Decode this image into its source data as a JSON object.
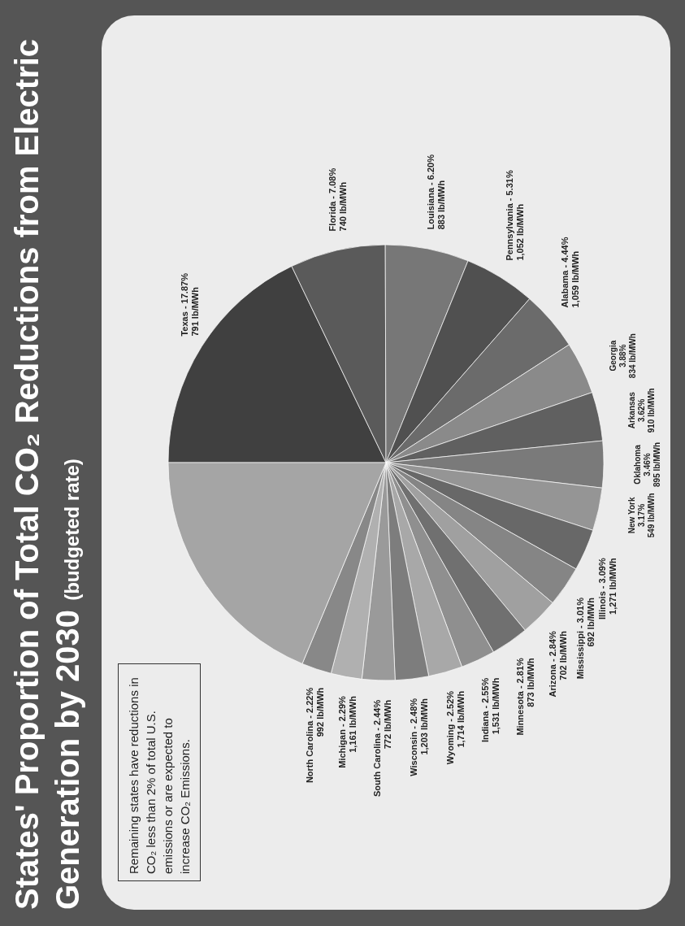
{
  "chart_data": {
    "type": "pie",
    "title": "States' Proportion of Total CO₂ Reductions from Electric Generation by 2030",
    "subtitle": "(budgeted rate)",
    "categories": [
      "Texas",
      "Florida",
      "Louisiana",
      "Pennsylvania",
      "Alabama",
      "Georgia",
      "Arkansas",
      "Oklahoma",
      "New York",
      "Illinois",
      "Mississippi",
      "Arizona",
      "Minnesota",
      "Indiana",
      "Wyoming",
      "Wisconsin",
      "South Carolina",
      "Michigan",
      "North Carolina",
      null
    ],
    "values": [
      17.87,
      7.08,
      6.2,
      5.31,
      4.44,
      3.88,
      3.62,
      3.46,
      3.17,
      3.09,
      3.01,
      2.84,
      2.81,
      2.55,
      2.52,
      2.48,
      2.44,
      2.29,
      2.22,
      18.72
    ],
    "value_labels": [
      "17.87%",
      "7.08%",
      "6.20%",
      "5.31%",
      "4.44%",
      "3.88%",
      "3.62%",
      "3.46%",
      "3.17%",
      "3.09%",
      "3.01%",
      "2.84%",
      "2.81%",
      "2.55%",
      "2.52%",
      "2.48%",
      "2.44%",
      "2.29%",
      "2.22%",
      null
    ],
    "colors": [
      "#404040",
      "#5a5a5a",
      "#777777",
      "#505050",
      "#6b6b6b",
      "#8a8a8a",
      "#606060",
      "#7a7a7a",
      "#959595",
      "#686868",
      "#858585",
      "#a0a0a0",
      "#707070",
      "#8f8f8f",
      "#a8a8a8",
      "#7d7d7d",
      "#9a9a9a",
      "#b0b0b0",
      "#888888",
      "#a5a5a5"
    ],
    "annotations": [
      "Remaining states have reductions in CO₂ less than 2% of total U.S. emissions or are expected to increase CO₂ Emissions.",
      {
        "text": "791 lb/MWh",
        "x": "Texas"
      },
      {
        "text": "740 lb/MWh",
        "x": "Florida"
      },
      {
        "text": "883 lb/MWh",
        "x": "Louisiana"
      },
      {
        "text": "1,052 lb/MWh",
        "x": "Pennsylvania"
      },
      {
        "text": "1,059 lb/MWh",
        "x": "Alabama"
      },
      {
        "text": "834 lb/MWh",
        "x": "Georgia"
      },
      {
        "text": "910 lb/MWh",
        "x": "Arkansas"
      },
      {
        "text": "895 lb/MWh",
        "x": "Oklahoma"
      },
      {
        "text": "549 lb/MWh",
        "x": "New York"
      },
      {
        "text": "1,271 lb/MWh",
        "x": "Illinois"
      },
      {
        "text": "692 lb/MWh",
        "x": "Mississippi"
      },
      {
        "text": "702 lb/MWh",
        "x": "Arizona"
      },
      {
        "text": "873 lb/MWh",
        "x": "Minnesota"
      },
      {
        "text": "1,531 lb/MWh",
        "x": "Indiana"
      },
      {
        "text": "1,714 lb/MWh",
        "x": "Wyoming"
      },
      {
        "text": "1,203 lb/MWh",
        "x": "Wisconsin"
      },
      {
        "text": "772 lb/MWh",
        "x": "South Carolina"
      },
      {
        "text": "1,161 lb/MWh",
        "x": "Michigan"
      },
      {
        "text": "992 lb/MWh",
        "x": "North Carolina"
      }
    ]
  }
}
